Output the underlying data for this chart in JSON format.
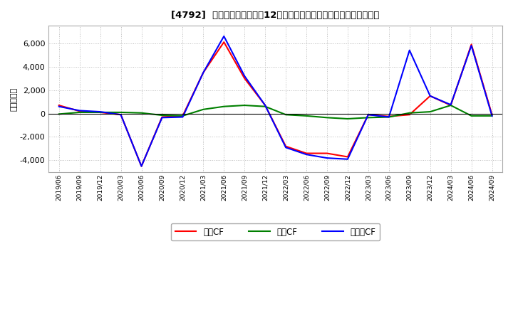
{
  "title": "[4792]  キャッシュフローの12か月移動合計の対前年同期増減額の推移",
  "ylabel": "（百万円）",
  "background_color": "#ffffff",
  "plot_bg_color": "#ffffff",
  "grid_color": "#bbbbbb",
  "x_labels": [
    "2019/06",
    "2019/09",
    "2019/12",
    "2020/03",
    "2020/06",
    "2020/09",
    "2020/12",
    "2021/03",
    "2021/06",
    "2021/09",
    "2021/12",
    "2022/03",
    "2022/06",
    "2022/09",
    "2022/12",
    "2023/03",
    "2023/06",
    "2023/09",
    "2023/12",
    "2024/03",
    "2024/06",
    "2024/09"
  ],
  "operating_cf": [
    700,
    200,
    100,
    -100,
    -4500,
    -300,
    -200,
    3500,
    6100,
    3000,
    700,
    -2800,
    -3400,
    -3400,
    -3700,
    -100,
    -250,
    -100,
    1500,
    700,
    5900,
    -100
  ],
  "investing_cf": [
    -50,
    100,
    100,
    100,
    50,
    -150,
    -200,
    350,
    600,
    700,
    600,
    -100,
    -200,
    -350,
    -450,
    -350,
    -300,
    50,
    150,
    700,
    -200,
    -200
  ],
  "free_cf": [
    600,
    250,
    150,
    -100,
    -4500,
    -350,
    -300,
    3500,
    6600,
    3200,
    700,
    -2900,
    -3500,
    -3800,
    -3900,
    -100,
    -300,
    5400,
    1500,
    750,
    5800,
    -200
  ],
  "ylim": [
    -5000,
    7500
  ],
  "yticks": [
    -4000,
    -2000,
    0,
    2000,
    4000,
    6000
  ],
  "line_colors": {
    "operating": "#ff0000",
    "investing": "#008000",
    "free": "#0000ff"
  },
  "legend_labels": [
    "営業CF",
    "投資CF",
    "フリーCF"
  ]
}
